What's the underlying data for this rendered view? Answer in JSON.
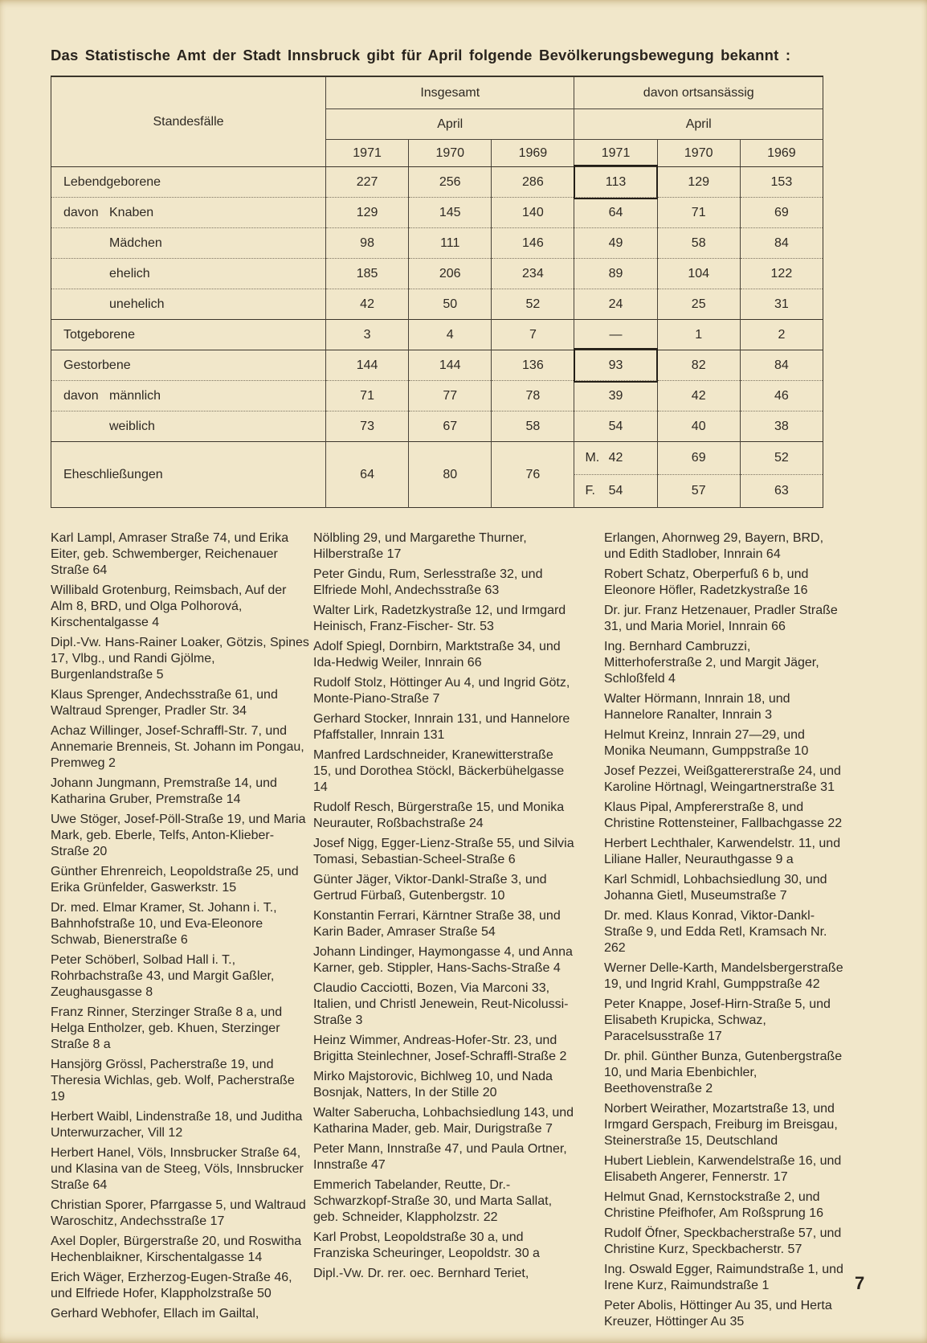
{
  "page": {
    "title": "Das Statistische Amt der Stadt Innsbruck gibt für April folgende Bevölkerungsbewegung bekannt :",
    "page_number": "7",
    "background_color": "#f1e7ca",
    "text_color": "#2e2923",
    "line_color": "#3b352b"
  },
  "table": {
    "corner_label": "Standesfälle",
    "groups": [
      {
        "label": "Insgesamt",
        "sub": "April",
        "years": [
          "1971",
          "1970",
          "1969"
        ]
      },
      {
        "label": "davon ortsansässig",
        "sub": "April",
        "years": [
          "1971",
          "1970",
          "1969"
        ]
      }
    ],
    "rows": [
      {
        "prefix": "",
        "label": "Lebendgeborene",
        "values": [
          "227",
          "256",
          "286",
          "113",
          "129",
          "153"
        ]
      },
      {
        "prefix": "davon",
        "label": "Knaben",
        "values": [
          "129",
          "145",
          "140",
          "64",
          "71",
          "69"
        ]
      },
      {
        "prefix": "",
        "label": "Mädchen",
        "values": [
          "98",
          "111",
          "146",
          "49",
          "58",
          "84"
        ]
      },
      {
        "prefix": "",
        "label": "ehelich",
        "values": [
          "185",
          "206",
          "234",
          "89",
          "104",
          "122"
        ]
      },
      {
        "prefix": "",
        "label": "unehelich",
        "values": [
          "42",
          "50",
          "52",
          "24",
          "25",
          "31"
        ]
      },
      {
        "prefix": "",
        "label": "Totgeborene",
        "values": [
          "3",
          "4",
          "7",
          "—",
          "1",
          "2"
        ]
      },
      {
        "prefix": "",
        "label": "Gestorbene",
        "values": [
          "144",
          "144",
          "136",
          "93",
          "82",
          "84"
        ]
      },
      {
        "prefix": "davon",
        "label": "männlich",
        "values": [
          "71",
          "77",
          "78",
          "39",
          "42",
          "46"
        ]
      },
      {
        "prefix": "",
        "label": "weiblich",
        "values": [
          "73",
          "67",
          "58",
          "54",
          "40",
          "38"
        ]
      }
    ],
    "marriages": {
      "label": "Eheschließungen",
      "total": [
        "64",
        "80",
        "76"
      ],
      "m_row": {
        "prefix": "M.",
        "values": [
          "42",
          "69",
          "52"
        ]
      },
      "f_row": {
        "prefix": "F.",
        "values": [
          "54",
          "57",
          "63"
        ]
      }
    }
  },
  "columns": [
    {
      "entries": [
        "Karl Lampl, Amraser Straße 74, und Erika Eiter, geb. Schwemberger, Reichenauer Straße 64",
        "Willibald Grotenburg, Reimsbach, Auf der Alm 8, BRD, und Olga Polhorová, Kirschentalgasse 4",
        "Dipl.-Vw. Hans-Rainer Loaker, Götzis, Spines 17, Vlbg., und Randi Gjölme, Burgenlandstraße 5",
        "Klaus Sprenger, Andechsstraße 61, und Waltraud Sprenger, Pradler Str. 34",
        "Achaz Willinger, Josef-Schraffl-Str. 7, und Annemarie Brenneis, St. Johann im Pongau, Premweg 2",
        "Johann Jungmann, Premstraße 14, und Katharina Gruber, Premstraße 14",
        "Uwe Stöger, Josef-Pöll-Straße 19, und Maria Mark, geb. Eberle, Telfs, Anton-Klieber-Straße 20",
        "Günther Ehrenreich, Leopoldstraße 25, und Erika Grünfelder, Gaswerkstr. 15",
        "Dr. med. Elmar Kramer, St. Johann i. T., Bahnhofstraße 10, und Eva-Eleonore Schwab, Bienerstraße 6",
        "Peter Schöberl, Solbad Hall i. T., Rohrbachstraße 43, und Margit Gaßler, Zeughausgasse 8",
        "Franz Rinner, Sterzinger Straße 8 a, und Helga Entholzer, geb. Khuen, Sterzinger Straße 8 a",
        "Hansjörg Grössl, Pacherstraße 19, und Theresia Wichlas, geb. Wolf, Pacherstraße 19",
        "Herbert Waibl, Lindenstraße 18, und Juditha Unterwurzacher, Vill 12",
        "Herbert Hanel, Völs, Innsbrucker Straße 64, und Klasina van de Steeg, Völs, Innsbrucker Straße 64",
        "Christian Sporer, Pfarrgasse 5, und Waltraud Waroschitz, Andechsstraße 17",
        "Axel Dopler, Bürgerstraße 20, und Roswitha Hechenblaikner, Kirschentalgasse 14",
        "Erich Wäger, Erzherzog-Eugen-Straße 46, und Elfriede Hofer, Klappholzstraße 50",
        "Gerhard Webhofer, Ellach im Gailtal,"
      ]
    },
    {
      "entries": [
        "Nölbling 29, und Margarethe Thurner, Hilberstraße 17",
        "Peter Gindu, Rum, Serlesstraße 32, und Elfriede Mohl, Andechsstraße 63",
        "Walter Lirk, Radetzkystraße 12, und Irmgard Heinisch, Franz-Fischer- Str. 53",
        "Adolf Spiegl, Dornbirn, Marktstraße 34, und Ida-Hedwig Weiler, Innrain 66",
        "Rudolf Stolz, Höttinger Au 4, und Ingrid Götz, Monte-Piano-Straße 7",
        "Gerhard Stocker, Innrain 131, und Hannelore Pfaffstaller, Innrain 131",
        "Manfred Lardschneider, Kranewitterstraße 15, und Dorothea Stöckl, Bäckerbühelgasse 14",
        "Rudolf Resch, Bürgerstraße 15, und Monika Neurauter, Roßbachstraße 24",
        "Josef Nigg, Egger-Lienz-Straße 55, und Silvia Tomasi, Sebastian-Scheel-Straße 6",
        "Günter Jäger, Viktor-Dankl-Straße 3, und Gertrud Fürbaß, Gutenbergstr. 10",
        "Konstantin Ferrari, Kärntner Straße 38, und Karin Bader, Amraser Straße 54",
        "Johann Lindinger, Haymongasse 4, und Anna Karner, geb. Stippler, Hans-Sachs-Straße 4",
        "Claudio Cacciotti, Bozen, Via Marconi 33, Italien, und Christl Jenewein, Reut-Nicolussi-Straße 3",
        "Heinz Wimmer, Andreas-Hofer-Str. 23, und Brigitta Steinlechner, Josef-Schraffl-Straße 2",
        "Mirko Majstorovic, Bichlweg 10, und Nada Bosnjak, Natters, In der Stille 20",
        "Walter Saberucha, Lohbachsiedlung 143, und Katharina Mader, geb. Mair, Durigstraße 7",
        "Peter Mann, Innstraße 47, und Paula Ortner, Innstraße 47",
        "Emmerich Tabelander, Reutte, Dr.-Schwarzkopf-Straße 30, und Marta Sallat, geb. Schneider, Klappholzstr. 22",
        "Karl Probst, Leopoldstraße 30 a, und Franziska Scheuringer, Leopoldstr. 30 a",
        "Dipl.-Vw. Dr. rer. oec. Bernhard Teriet,"
      ]
    },
    {
      "entries": [
        "Erlangen, Ahornweg 29, Bayern, BRD, und Edith Stadlober, Innrain 64",
        "Robert Schatz, Oberperfuß 6 b, und Eleonore Höfler, Radetzkystraße 16",
        "Dr. jur. Franz Hetzenauer, Pradler Straße 31, und Maria Moriel, Innrain 66",
        "Ing. Bernhard Cambruzzi, Mitterhoferstraße 2, und Margit Jäger, Schloßfeld 4",
        "Walter Hörmann, Innrain 18, und Hannelore Ranalter, Innrain 3",
        "Helmut Kreinz, Innrain 27—29, und Monika Neumann, Gumppstraße 10",
        "Josef Pezzei, Weißgattererstraße 24, und Karoline Hörtnagl, Weingartnerstraße 31",
        "Klaus Pipal, Ampfererstraße 8, und Christine Rottensteiner, Fallbachgasse 22",
        "Herbert Lechthaler, Karwendelstr. 11, und Liliane Haller, Neurauthgasse 9 a",
        "Karl Schmidl, Lohbachsiedlung 30, und Johanna Gietl, Museumstraße 7",
        "Dr. med. Klaus Konrad, Viktor-Dankl-Straße 9, und Edda Retl, Kramsach Nr. 262",
        "Werner Delle-Karth, Mandelsbergerstraße 19, und Ingrid Krahl, Gumppstraße 42",
        "Peter Knappe, Josef-Hirn-Straße 5, und Elisabeth Krupicka, Schwaz, Paracelsusstraße 17",
        "Dr. phil. Günther Bunza, Gutenbergstraße 10, und Maria Ebenbichler, Beethovenstraße 2",
        "Norbert Weirather, Mozartstraße 13, und Irmgard Gerspach, Freiburg im Breisgau, Steinerstraße 15, Deutschland",
        "Hubert Lieblein, Karwendelstraße 16, und Elisabeth Angerer, Fennerstr. 17",
        "Helmut Gnad, Kernstockstraße 2, und Christine Pfeifhofer, Am Roßsprung 16",
        "Rudolf Öfner, Speckbacherstraße 57, und Christine Kurz, Speckbacherstr. 57",
        "Ing. Oswald Egger, Raimundstraße 1, und Irene Kurz, Raimundstraße 1",
        "Peter Abolis, Höttinger Au 35, und Herta Kreuzer, Höttinger Au 35"
      ]
    }
  ]
}
